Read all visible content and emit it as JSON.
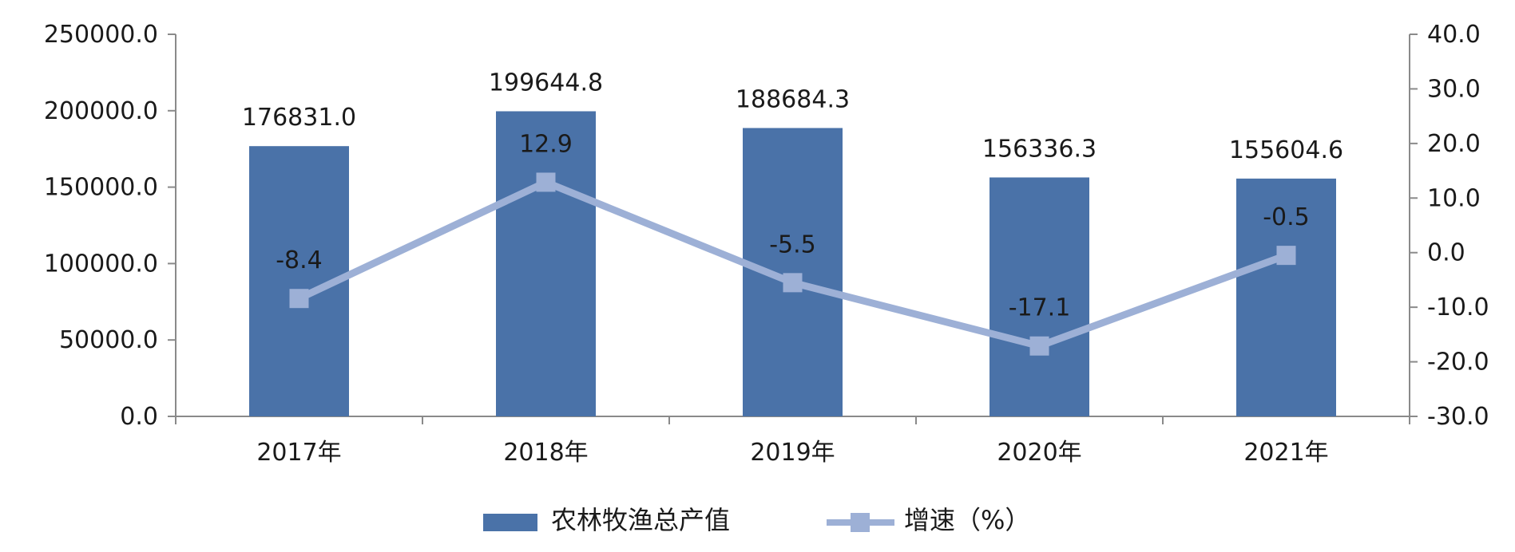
{
  "chart_data": {
    "type": "bar",
    "categories": [
      "2017年",
      "2018年",
      "2019年",
      "2020年",
      "2021年"
    ],
    "series": [
      {
        "name": "农林牧渔总产值",
        "type": "bar",
        "axis": "left",
        "values": [
          176831.0,
          199644.8,
          188684.3,
          156336.3,
          155604.6
        ],
        "labels": [
          "176831.0",
          "199644.8",
          "188684.3",
          "156336.3",
          "155604.6"
        ]
      },
      {
        "name": "增速（%）",
        "type": "line",
        "axis": "right",
        "values": [
          -8.4,
          12.9,
          -5.5,
          -17.1,
          -0.5
        ],
        "labels": [
          "-8.4",
          "12.9",
          "-5.5",
          "-17.1",
          "-0.5"
        ]
      }
    ],
    "y_left": {
      "lim": [
        0,
        250000
      ],
      "ticks": [
        0,
        50000,
        100000,
        150000,
        200000,
        250000
      ],
      "tick_labels": [
        "0.0",
        "50000.0",
        "100000.0",
        "150000.0",
        "200000.0",
        "250000.0"
      ]
    },
    "y_right": {
      "lim": [
        -30,
        40
      ],
      "ticks": [
        -30,
        -20,
        -10,
        0,
        10,
        20,
        30,
        40
      ],
      "tick_labels": [
        "-30.0",
        "-20.0",
        "-10.0",
        "0.0",
        "10.0",
        "20.0",
        "30.0",
        "40.0"
      ]
    },
    "legend_position": "bottom",
    "grid": false,
    "colors": {
      "bar": "#4a72a8",
      "line": "#9db0d6",
      "axis": "#8a8a8a"
    }
  }
}
